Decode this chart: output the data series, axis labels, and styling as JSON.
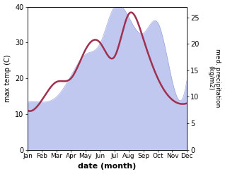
{
  "months": [
    "Jan",
    "Feb",
    "Mar",
    "Apr",
    "May",
    "Jun",
    "Jul",
    "Aug",
    "Sep",
    "Oct",
    "Nov",
    "Dec"
  ],
  "temperature": [
    11,
    14,
    19,
    20,
    28,
    30,
    26,
    38,
    31,
    20,
    14,
    13
  ],
  "precipitation": [
    9,
    9,
    10,
    14,
    18,
    20,
    27,
    25,
    22,
    24,
    13,
    13
  ],
  "temp_ylim": [
    0,
    40
  ],
  "precip_ylim": [
    0,
    27
  ],
  "temp_color": "#a03050",
  "fill_color": "#c0c8f0",
  "fill_edge_color": "#a0a8e0",
  "xlabel": "date (month)",
  "ylabel_left": "max temp (C)",
  "ylabel_right": "med. precipitation\n(kg/m2)",
  "left_yticks": [
    0,
    10,
    20,
    30,
    40
  ],
  "right_yticks": [
    0,
    5,
    10,
    15,
    20,
    25
  ],
  "linewidth": 1.8,
  "figsize": [
    3.18,
    2.47
  ],
  "dpi": 100
}
